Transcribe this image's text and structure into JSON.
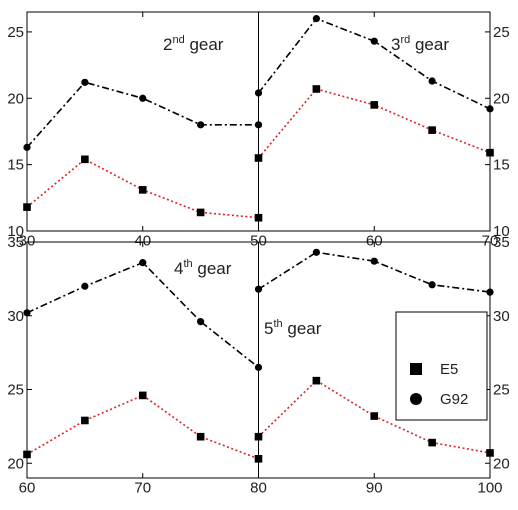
{
  "chart_data": [
    {
      "type": "line",
      "panel": "top",
      "xlim": [
        30,
        70
      ],
      "ylim": [
        10,
        26.5
      ],
      "x_ticks": [
        30,
        40,
        50,
        60,
        70
      ],
      "y_ticks": [
        10,
        15,
        20,
        25
      ],
      "annotations": [
        {
          "base": "2",
          "sup": "nd",
          "rest": " gear"
        },
        {
          "base": "3",
          "sup": "rd",
          "rest": " gear"
        }
      ],
      "split_x": 50,
      "series": [
        {
          "marker": "circle",
          "color": "#000000",
          "dash": "dashdot",
          "x": [
            30,
            35,
            40,
            45,
            50,
            50,
            55,
            60,
            65,
            70
          ],
          "values": [
            16.3,
            21.2,
            20.0,
            18.0,
            18.0,
            20.4,
            26.0,
            24.3,
            21.3,
            19.2
          ]
        },
        {
          "marker": "square",
          "color": "#dd2222",
          "dash": "dotted",
          "x": [
            30,
            35,
            40,
            45,
            50,
            50,
            55,
            60,
            65,
            70
          ],
          "values": [
            11.8,
            15.4,
            13.1,
            11.4,
            11.0,
            15.5,
            20.7,
            19.5,
            17.6,
            15.9
          ]
        }
      ]
    },
    {
      "type": "line",
      "panel": "bottom",
      "xlim": [
        60,
        100
      ],
      "ylim": [
        19,
        35
      ],
      "x_ticks": [
        60,
        70,
        80,
        90,
        100
      ],
      "y_ticks": [
        20,
        25,
        30,
        35
      ],
      "annotations": [
        {
          "base": "4",
          "sup": "th",
          "rest": " gear"
        },
        {
          "base": "5",
          "sup": "th",
          "rest": " gear"
        }
      ],
      "split_x": 80,
      "series": [
        {
          "marker": "circle",
          "color": "#000000",
          "dash": "dashdot",
          "x": [
            60,
            65,
            70,
            75,
            80,
            80,
            85,
            90,
            95,
            100
          ],
          "values": [
            30.2,
            32.0,
            33.6,
            29.6,
            26.5,
            31.8,
            34.3,
            33.7,
            32.1,
            31.6
          ]
        },
        {
          "marker": "square",
          "color": "#dd2222",
          "dash": "dotted",
          "x": [
            60,
            65,
            70,
            75,
            80,
            80,
            85,
            90,
            95,
            100
          ],
          "values": [
            20.6,
            22.9,
            24.6,
            21.8,
            20.3,
            21.8,
            25.6,
            23.2,
            21.4,
            20.7
          ]
        }
      ]
    }
  ],
  "legend": {
    "placement": "right-bottom-panel",
    "items": [
      {
        "marker": "square",
        "label": "E5"
      },
      {
        "marker": "circle",
        "label": "G92"
      }
    ]
  }
}
